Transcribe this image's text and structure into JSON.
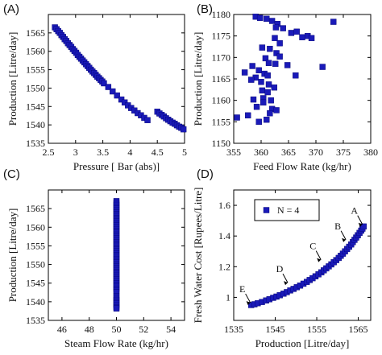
{
  "chart_data": [
    {
      "panel_label": "(A)",
      "type": "scatter",
      "xlabel": "Pressure [ Bar (abs)]",
      "ylabel": "Production [Litre/day]",
      "xlim": [
        2.5,
        5
      ],
      "ylim": [
        1535,
        1570
      ],
      "xticks": [
        "2.5",
        "3",
        "3.5",
        "4",
        "4.5",
        "5"
      ],
      "yticks": [
        "1535",
        "1540",
        "1545",
        "1550",
        "1555",
        "1560",
        "1565"
      ],
      "series": [
        {
          "x": [
            2.62,
            2.65,
            2.68,
            2.71,
            2.74,
            2.77,
            2.8,
            2.83,
            2.86,
            2.89,
            2.92,
            2.95,
            2.98,
            3.01,
            3.04,
            3.07,
            3.1,
            3.13,
            3.16,
            3.19,
            3.22,
            3.25,
            3.28,
            3.31,
            3.34,
            3.37,
            3.4,
            3.43,
            3.46,
            3.49,
            3.52,
            3.6,
            3.68,
            3.76,
            3.84,
            3.9,
            3.96,
            4.02,
            4.08,
            4.14,
            4.2,
            4.26,
            4.32,
            4.5,
            4.54,
            4.58,
            4.62,
            4.66,
            4.7,
            4.74,
            4.78,
            4.82,
            4.86,
            4.9,
            4.94,
            4.98
          ],
          "y": [
            1566.5,
            1566,
            1565.5,
            1565,
            1564.4,
            1563.9,
            1563.3,
            1562.8,
            1562.2,
            1561.7,
            1561.2,
            1560.6,
            1560.1,
            1559.6,
            1559,
            1558.5,
            1558,
            1557.5,
            1557,
            1556.5,
            1556,
            1555.5,
            1555,
            1554.5,
            1554.1,
            1553.6,
            1553.1,
            1552.7,
            1552.2,
            1551.8,
            1551.3,
            1550.3,
            1549.1,
            1548,
            1546.9,
            1546.1,
            1545.3,
            1544.6,
            1543.9,
            1543.2,
            1542.6,
            1541.9,
            1541.3,
            1543.6,
            1543.1,
            1542.7,
            1542.3,
            1541.8,
            1541.4,
            1541,
            1540.6,
            1540.3,
            1539.9,
            1539.5,
            1539.2,
            1538.8
          ]
        }
      ]
    },
    {
      "panel_label": "(B)",
      "type": "scatter",
      "xlabel": "Feed Flow Rate (kg/hr)",
      "ylabel": "Production [Litre/day]",
      "xlim": [
        355,
        380
      ],
      "ylim": [
        1150,
        1180
      ],
      "xticks": [
        "355",
        "360",
        "365",
        "370",
        "375",
        "380"
      ],
      "yticks": [
        "1150",
        "1155",
        "1160",
        "1165",
        "1170",
        "1175",
        "1180"
      ],
      "series": [
        {
          "x": [
            359,
            359.8,
            361,
            362,
            363,
            362.7,
            364,
            365.5,
            366.5,
            367.5,
            368.5,
            369.2,
            373.2,
            362.5,
            363.4,
            360.2,
            361.6,
            362.8,
            360.8,
            361.4,
            358.4,
            357,
            359.6,
            360.6,
            361.2,
            359,
            358.2,
            360,
            361.4,
            362.4,
            360.2,
            361.2,
            364.8,
            371.2,
            366.3,
            362.6,
            363.4,
            360.4,
            358.6,
            361.8,
            360.4,
            359.2,
            362,
            362.8,
            361.6,
            357.6,
            355.6,
            361,
            359.6
          ],
          "y": [
            1179.5,
            1179.2,
            1179,
            1178.5,
            1177.8,
            1177,
            1176.8,
            1175.7,
            1176,
            1174.7,
            1175,
            1174.5,
            1178.3,
            1174.5,
            1173.3,
            1172.3,
            1172,
            1171,
            1169.8,
            1168.7,
            1168,
            1166.5,
            1167,
            1166.2,
            1165.8,
            1165.3,
            1164.8,
            1164.3,
            1163.7,
            1163,
            1162.3,
            1161.9,
            1168.2,
            1167.8,
            1165.8,
            1168.5,
            1170.2,
            1160.5,
            1160.2,
            1160,
            1159.5,
            1158.5,
            1158,
            1157.7,
            1157,
            1156.5,
            1156,
            1155.5,
            1155
          ]
        }
      ]
    },
    {
      "panel_label": "(C)",
      "type": "scatter",
      "xlabel": "Steam Flow Rate (kg/hr)",
      "ylabel": "Production [Litre/day]",
      "xlim": [
        45,
        55
      ],
      "ylim": [
        1535,
        1570
      ],
      "xticks": [
        "46",
        "48",
        "50",
        "52",
        "54"
      ],
      "yticks": [
        "1535",
        "1540",
        "1545",
        "1550",
        "1555",
        "1560",
        "1565"
      ],
      "series": [
        {
          "x": [
            50,
            50,
            50,
            50,
            50,
            50,
            50,
            50,
            50,
            50,
            50,
            50,
            50,
            50,
            50,
            50,
            50,
            50,
            50,
            50,
            50,
            50,
            50,
            50,
            50,
            50,
            50,
            50,
            50,
            50,
            50,
            50,
            50,
            50,
            50,
            50,
            50,
            50,
            50,
            50,
            50,
            50,
            50,
            50,
            50,
            50,
            50,
            50,
            50,
            50,
            50,
            50,
            50,
            50,
            50,
            50,
            50,
            50
          ],
          "y": [
            1567,
            1566.5,
            1566,
            1565.5,
            1565,
            1564.5,
            1564,
            1563.5,
            1563,
            1562.5,
            1562,
            1561.5,
            1561,
            1560.5,
            1560,
            1559.5,
            1559,
            1558.5,
            1558,
            1557.5,
            1557,
            1556.5,
            1556,
            1555.5,
            1555,
            1554.5,
            1554,
            1553.5,
            1553,
            1552.5,
            1552,
            1551.5,
            1551,
            1550.5,
            1550,
            1549.5,
            1549,
            1548.5,
            1548,
            1547.5,
            1547,
            1546.5,
            1546,
            1545.5,
            1545,
            1544.5,
            1544,
            1543.5,
            1543,
            1542.5,
            1541.5,
            1541,
            1540.5,
            1540,
            1539.5,
            1539,
            1538.5,
            1538.2
          ]
        }
      ]
    },
    {
      "panel_label": "(D)",
      "type": "scatter",
      "xlabel": "Production [Litre/day]",
      "ylabel": "Fresh Water Cost [Rupees/Litre]",
      "xlim": [
        1535,
        1568
      ],
      "ylim": [
        0.85,
        1.7
      ],
      "xticks": [
        "1535",
        "1545",
        "1555",
        "1565"
      ],
      "yticks": [
        "1",
        "1.2",
        "1.4",
        "1.6"
      ],
      "legend": "N = 4",
      "legend_position": "top-left",
      "annotations": [
        {
          "text": "A",
          "x": 1566.2,
          "y": 1.46
        },
        {
          "text": "B",
          "x": 1562.2,
          "y": 1.36
        },
        {
          "text": "C",
          "x": 1556.2,
          "y": 1.23
        },
        {
          "text": "D",
          "x": 1548.2,
          "y": 1.08
        },
        {
          "text": "E",
          "x": 1539.2,
          "y": 0.95
        }
      ],
      "series": [
        {
          "x": [
            1539.2,
            1540,
            1540.8,
            1541.8,
            1542.8,
            1543.6,
            1544.5,
            1545.3,
            1546.1,
            1547,
            1547.8,
            1548.6,
            1549.4,
            1550.2,
            1551,
            1551.8,
            1552.6,
            1553.3,
            1554,
            1554.7,
            1555.4,
            1556.1,
            1556.7,
            1557.3,
            1557.9,
            1558.5,
            1559.1,
            1559.7,
            1560.3,
            1560.8,
            1561.3,
            1561.8,
            1562.3,
            1562.8,
            1563.3,
            1563.7,
            1564.1,
            1564.5,
            1564.9,
            1565.3,
            1565.7,
            1566,
            1566.3
          ],
          "y": [
            0.95,
            0.955,
            0.962,
            0.97,
            0.98,
            0.988,
            0.997,
            1.005,
            1.014,
            1.024,
            1.034,
            1.045,
            1.055,
            1.066,
            1.077,
            1.089,
            1.101,
            1.113,
            1.125,
            1.137,
            1.15,
            1.163,
            1.176,
            1.189,
            1.202,
            1.215,
            1.229,
            1.243,
            1.257,
            1.271,
            1.285,
            1.3,
            1.315,
            1.33,
            1.345,
            1.36,
            1.375,
            1.39,
            1.405,
            1.42,
            1.435,
            1.448,
            1.462
          ]
        }
      ]
    }
  ]
}
